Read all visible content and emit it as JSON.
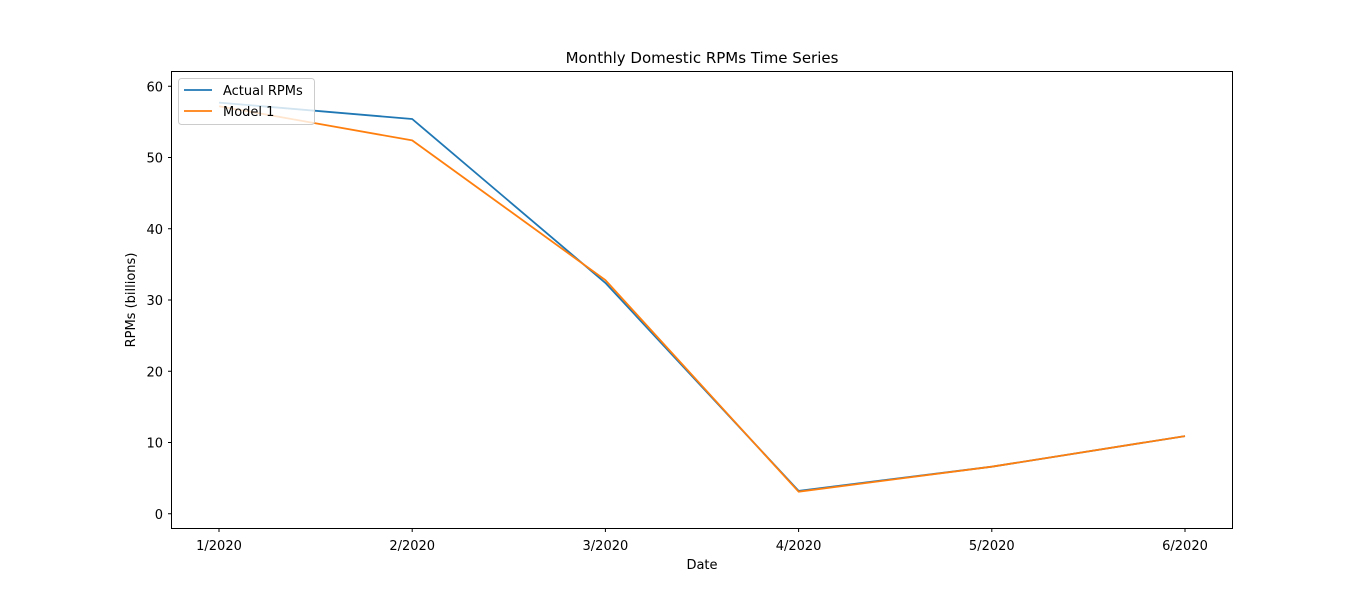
{
  "chart_data": {
    "type": "line",
    "title": "Monthly Domestic RPMs Time Series",
    "xlabel": "Date",
    "ylabel": "RPMs (billions)",
    "categories": [
      "1/2020",
      "2/2020",
      "3/2020",
      "4/2020",
      "5/2020",
      "6/2020"
    ],
    "ylim": [
      -2,
      62
    ],
    "yticks": [
      0,
      10,
      20,
      30,
      40,
      50,
      60
    ],
    "grid": false,
    "legend_position": "upper-left",
    "series": [
      {
        "name": "Actual RPMs",
        "color": "#1f77b4",
        "values": [
          57.7,
          55.4,
          32.4,
          3.2,
          6.6,
          10.9
        ]
      },
      {
        "name": "Model 1",
        "color": "#ff7f0e",
        "values": [
          57.2,
          52.4,
          32.8,
          3.1,
          6.6,
          10.9
        ]
      }
    ]
  }
}
